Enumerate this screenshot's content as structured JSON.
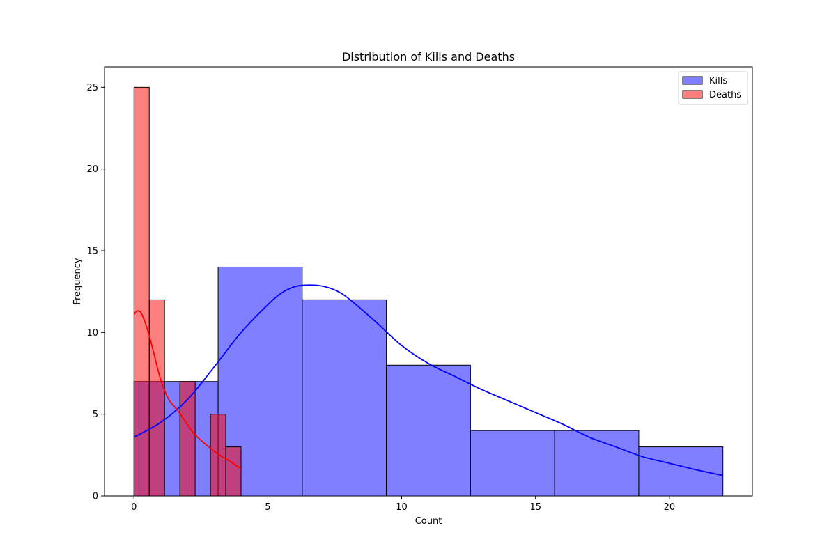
{
  "chart_data": {
    "type": "bar",
    "title": "Distribution of Kills and Deaths",
    "xlabel": "Count",
    "ylabel": "Frequency",
    "xlim": [
      -1.1,
      23.1
    ],
    "ylim": [
      0,
      26.25
    ],
    "xticks": [
      0,
      5,
      10,
      15,
      20
    ],
    "yticks": [
      0,
      5,
      10,
      15,
      20,
      25
    ],
    "grid": false,
    "legend_position": "top-right",
    "series": [
      {
        "name": "Kills",
        "color": "#0000ff",
        "fill_opacity": 0.5,
        "bin_edges": [
          0,
          3.142857,
          6.285714,
          9.428571,
          12.571429,
          15.714286,
          18.857143,
          22
        ],
        "values": [
          7,
          14,
          12,
          8,
          4,
          4,
          3
        ],
        "kde": {
          "x": [
            0,
            1,
            2,
            3,
            4,
            5,
            5.5,
            6,
            6.5,
            7,
            7.5,
            8,
            9,
            10,
            11,
            12,
            13,
            14,
            15,
            16,
            17,
            18,
            19,
            20,
            21,
            22
          ],
          "y": [
            3.6,
            4.5,
            5.9,
            7.9,
            10.0,
            11.7,
            12.4,
            12.8,
            12.9,
            12.85,
            12.6,
            12.1,
            10.7,
            9.2,
            8.1,
            7.3,
            6.5,
            5.8,
            5.1,
            4.4,
            3.6,
            3.0,
            2.4,
            2.0,
            1.6,
            1.25
          ]
        }
      },
      {
        "name": "Deaths",
        "color": "#ff0000",
        "fill_opacity": 0.5,
        "bin_edges": [
          0,
          0.571429,
          1.142857,
          1.714286,
          2.285714,
          2.857143,
          3.428571,
          4
        ],
        "values": [
          25,
          12,
          0,
          7,
          0,
          5,
          3
        ],
        "kde": {
          "x": [
            0,
            0.1,
            0.2,
            0.3,
            0.5,
            0.7,
            1.0,
            1.3,
            1.6,
            1.9,
            2.2,
            2.5,
            2.8,
            3.1,
            3.4,
            3.7,
            4.0
          ],
          "y": [
            11.1,
            11.3,
            11.3,
            11.1,
            10.2,
            9.0,
            7.1,
            5.9,
            5.3,
            4.6,
            3.9,
            3.4,
            3.0,
            2.6,
            2.3,
            2.0,
            1.65
          ]
        }
      }
    ]
  }
}
